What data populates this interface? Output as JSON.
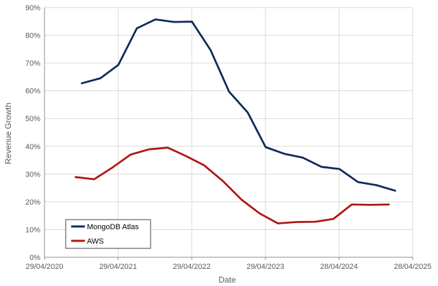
{
  "chart_data": {
    "type": "line",
    "title": "",
    "xlabel": "Date",
    "ylabel": "Revenue Growth",
    "xlim": [
      "2020-04-29",
      "2025-04-28"
    ],
    "ylim": [
      0,
      90
    ],
    "x_ticks": [
      "29/04/2020",
      "29/04/2021",
      "29/04/2022",
      "29/04/2023",
      "28/04/2024",
      "28/04/2025"
    ],
    "y_ticks": [
      "0%",
      "10%",
      "20%",
      "30%",
      "40%",
      "50%",
      "60%",
      "70%",
      "80%",
      "90%"
    ],
    "y_tick_values": [
      0,
      10,
      20,
      30,
      40,
      50,
      60,
      70,
      80,
      90
    ],
    "grid": true,
    "legend_position": "bottom-left",
    "series": [
      {
        "name": "MongoDB Atlas",
        "color": "#0e2a5c",
        "points": [
          [
            "2020-10-31",
            62.7
          ],
          [
            "2021-01-31",
            64.5
          ],
          [
            "2021-04-30",
            69.3
          ],
          [
            "2021-07-31",
            82.5
          ],
          [
            "2021-10-31",
            85.7
          ],
          [
            "2022-01-31",
            84.8
          ],
          [
            "2022-04-30",
            84.9
          ],
          [
            "2022-07-31",
            74.7
          ],
          [
            "2022-10-31",
            59.7
          ],
          [
            "2023-01-31",
            52.2
          ],
          [
            "2023-04-30",
            39.7
          ],
          [
            "2023-07-31",
            37.3
          ],
          [
            "2023-10-31",
            35.9
          ],
          [
            "2024-01-31",
            32.6
          ],
          [
            "2024-04-30",
            31.8
          ],
          [
            "2024-07-31",
            27.1
          ],
          [
            "2024-10-31",
            26.0
          ],
          [
            "2025-01-31",
            24.0
          ]
        ]
      },
      {
        "name": "AWS",
        "color": "#b01515",
        "points": [
          [
            "2020-09-30",
            28.9
          ],
          [
            "2020-12-31",
            28.1
          ],
          [
            "2021-03-31",
            32.3
          ],
          [
            "2021-06-30",
            37.0
          ],
          [
            "2021-09-30",
            38.9
          ],
          [
            "2021-12-31",
            39.5
          ],
          [
            "2022-03-31",
            36.5
          ],
          [
            "2022-06-30",
            33.1
          ],
          [
            "2022-09-30",
            27.5
          ],
          [
            "2022-12-31",
            20.8
          ],
          [
            "2023-03-31",
            15.8
          ],
          [
            "2023-06-30",
            12.2
          ],
          [
            "2023-09-30",
            12.7
          ],
          [
            "2023-12-31",
            12.8
          ],
          [
            "2024-03-31",
            13.8
          ],
          [
            "2024-06-30",
            19.0
          ],
          [
            "2024-09-30",
            18.9
          ],
          [
            "2024-12-31",
            19.0
          ]
        ]
      }
    ]
  }
}
